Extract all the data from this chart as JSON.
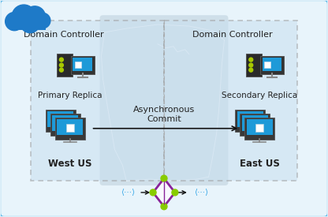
{
  "fig_width": 4.16,
  "fig_height": 2.75,
  "dpi": 100,
  "bg_light_blue": "#ddeef8",
  "bg_outer_border": "#5bb8e8",
  "bg_inner": "#e8f4fb",
  "left_region_bg": "#c8dff0",
  "right_region_bg": "#c8dff0",
  "map_color": "#b8ccd8",
  "map_line_color": "#a0bbc8",
  "dashed_color": "#999999",
  "cloud_color": "#1e7ac8",
  "server_body": "#2c2c2c",
  "server_dot": "#a8c800",
  "monitor_body": "#444444",
  "monitor_screen": "#28a0d8",
  "monitor_stand": "#888888",
  "cube_color": "#ffffff",
  "text_color": "#222222",
  "arrow_color": "#111111",
  "dots_color": "#38a8e8",
  "diamond_border": "#882299",
  "diamond_fill": "#f8f8ff",
  "diamond_dot": "#88cc00",
  "title_left": "Domain Controller",
  "title_right": "Domain Controller",
  "label_primary": "Primary Replica",
  "label_secondary": "Secondary Replica",
  "label_west": "West US",
  "label_east": "East US",
  "label_async": "Asynchronous\nCommit",
  "font_size_title": 8.0,
  "font_size_label": 7.5,
  "font_size_region": 8.5,
  "font_size_async": 8.0,
  "font_size_dots": 7.5
}
